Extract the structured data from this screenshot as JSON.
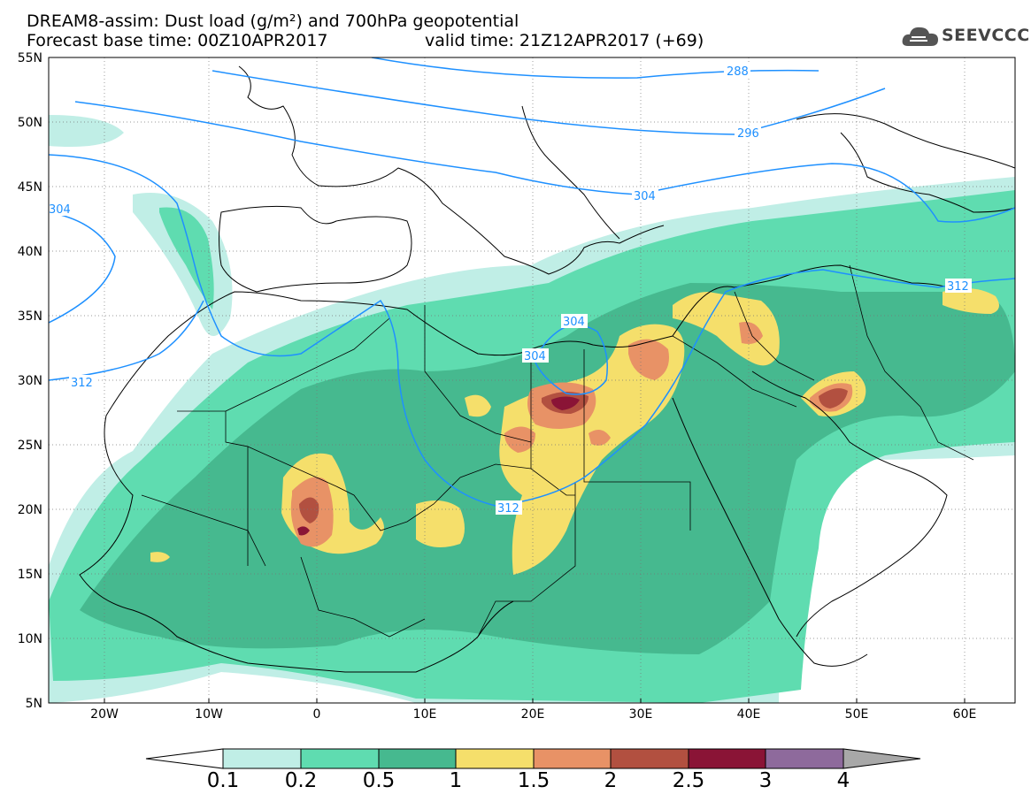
{
  "header": {
    "line1": "DREAM8-assim: Dust load (g/m²) and 700hPa geopotential",
    "line2a": "Forecast base time: 00Z10APR2017",
    "line2b": "valid time: 21Z12APR2017 (+69)"
  },
  "logo": {
    "text": "SEEVCCC",
    "icon": "cloud-logo-icon"
  },
  "map": {
    "lat_labels": [
      "55N",
      "50N",
      "45N",
      "40N",
      "35N",
      "30N",
      "25N",
      "20N",
      "15N",
      "10N",
      "5N"
    ],
    "lon_labels": [
      "20W",
      "10W",
      "0",
      "10E",
      "20E",
      "30E",
      "40E",
      "50E",
      "60E"
    ],
    "contour_labels": [
      "288",
      "296",
      "304",
      "304",
      "312",
      "304",
      "304",
      "312",
      "312"
    ],
    "contour_color": "#1e90ff"
  },
  "colorbar": {
    "labels": [
      "0.1",
      "0.2",
      "0.5",
      "1",
      "1.5",
      "2",
      "2.5",
      "3",
      "4"
    ],
    "colors": [
      "#c0eee6",
      "#5fdcb0",
      "#46b98f",
      "#f5df6b",
      "#e89266",
      "#b25040",
      "#8a1436",
      "#8e6a9c",
      "#a8a8a8"
    ]
  }
}
